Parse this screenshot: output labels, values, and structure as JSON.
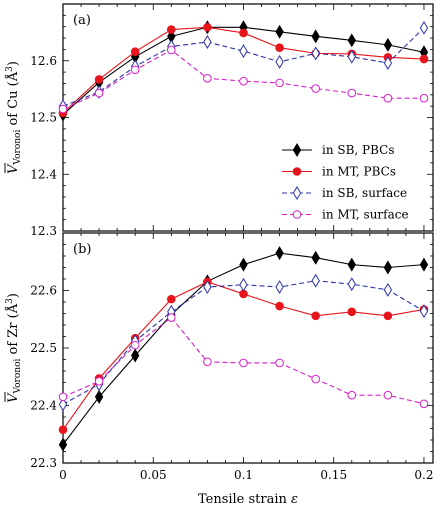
{
  "chart_data": [
    {
      "type": "line",
      "panel_label": "(a)",
      "ylabel": "V̄_Voronoi of Cu (Å³)",
      "ylabel_main": "V",
      "ylabel_sub": "Voronoi",
      "ylabel_rest": " of Cu (Å",
      "ylabel_sup": "3",
      "ylabel_close": ")",
      "ylim": [
        12.3,
        12.7
      ],
      "yticks": [
        12.3,
        12.4,
        12.5,
        12.6
      ],
      "ytick_labels": [
        "12.3",
        "12.4",
        "12.5",
        "12.6"
      ],
      "xlim": [
        0,
        0.205
      ],
      "xticks": [
        0,
        0.05,
        0.1,
        0.15,
        0.2
      ],
      "x": [
        0,
        0.02,
        0.04,
        0.06,
        0.08,
        0.1,
        0.12,
        0.14,
        0.16,
        0.18,
        0.2
      ],
      "legend_position": "lower-right",
      "series": [
        {
          "name": "in SB, PBCs",
          "color": "#000000",
          "marker": "diamond-filled",
          "dash": "solid",
          "values": [
            12.505,
            12.562,
            12.607,
            12.643,
            12.659,
            12.659,
            12.651,
            12.643,
            12.636,
            12.628,
            12.615
          ]
        },
        {
          "name": "in MT, PBCs",
          "color": "#e8141c",
          "marker": "circle-filled",
          "dash": "solid",
          "values": [
            12.508,
            12.567,
            12.616,
            12.655,
            12.659,
            12.649,
            12.623,
            12.613,
            12.612,
            12.606,
            12.603
          ]
        },
        {
          "name": "in SB, surface",
          "color": "#2b35a8",
          "marker": "diamond-open",
          "dash": "dashed",
          "values": [
            12.52,
            12.545,
            12.59,
            12.625,
            12.633,
            12.617,
            12.598,
            12.613,
            12.607,
            12.596,
            12.658
          ]
        },
        {
          "name": "in MT, surface",
          "color": "#d81ec8",
          "marker": "circle-open",
          "dash": "dashed",
          "values": [
            12.515,
            12.543,
            12.584,
            12.619,
            12.569,
            12.564,
            12.561,
            12.551,
            12.543,
            12.534,
            12.534
          ]
        }
      ]
    },
    {
      "type": "line",
      "panel_label": "(b)",
      "ylabel": "V̄_Voronoi of Zr (Å³)",
      "ylabel_main": "V",
      "ylabel_sub": "Voronoi",
      "ylabel_rest": " of Zr (Å",
      "ylabel_sup": "3",
      "ylabel_close": ")",
      "xlabel": "Tensile strain ε",
      "xlabel_text": "Tensile strain ",
      "xlabel_symbol": "ε",
      "ylim": [
        22.3,
        22.7
      ],
      "yticks": [
        22.3,
        22.4,
        22.5,
        22.6
      ],
      "ytick_labels": [
        "22.3",
        "22.4",
        "22.5",
        "22.6"
      ],
      "xlim": [
        0,
        0.205
      ],
      "xticks": [
        0,
        0.05,
        0.1,
        0.15,
        0.2
      ],
      "xtick_labels": [
        "0",
        "0.05",
        "0.1",
        "0.15",
        "0.2"
      ],
      "x": [
        0,
        0.02,
        0.04,
        0.06,
        0.08,
        0.1,
        0.12,
        0.14,
        0.16,
        0.18,
        0.2
      ],
      "series": [
        {
          "color": "#000000",
          "marker": "diamond-filled",
          "dash": "solid",
          "values": [
            22.332,
            22.415,
            22.487,
            22.558,
            22.616,
            22.645,
            22.665,
            22.657,
            22.645,
            22.64,
            22.645
          ]
        },
        {
          "color": "#e8141c",
          "marker": "circle-filled",
          "dash": "solid",
          "values": [
            22.358,
            22.447,
            22.517,
            22.585,
            22.615,
            22.594,
            22.573,
            22.556,
            22.563,
            22.556,
            22.567
          ]
        },
        {
          "color": "#2b35a8",
          "marker": "diamond-open",
          "dash": "dashed",
          "values": [
            22.402,
            22.437,
            22.512,
            22.563,
            22.606,
            22.61,
            22.606,
            22.617,
            22.611,
            22.601,
            22.564
          ]
        },
        {
          "color": "#d81ec8",
          "marker": "circle-open",
          "dash": "dashed",
          "values": [
            22.415,
            22.442,
            22.505,
            22.553,
            22.476,
            22.474,
            22.474,
            22.446,
            22.418,
            22.418,
            22.403
          ]
        }
      ]
    }
  ]
}
